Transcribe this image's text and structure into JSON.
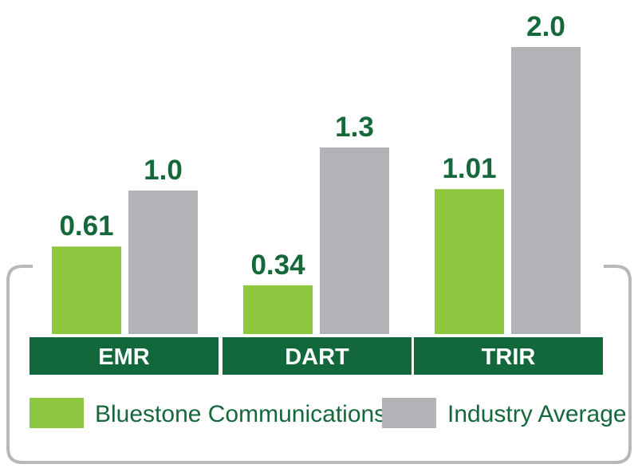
{
  "chart_data": {
    "type": "bar",
    "categories": [
      "EMR",
      "DART",
      "TRIR"
    ],
    "series": [
      {
        "name": "Bluestone Communications",
        "values": [
          0.61,
          0.34,
          1.01
        ],
        "labels": [
          "0.61",
          "0.34",
          "1.01"
        ],
        "color": "#8dc63f"
      },
      {
        "name": "Industry Average",
        "values": [
          1.0,
          1.3,
          2.0
        ],
        "labels": [
          "1.0",
          "1.3",
          "2.0"
        ],
        "color": "#b1b3b6"
      }
    ],
    "ylim": [
      0,
      2.0
    ],
    "legend_position": "bottom",
    "grid": false,
    "colors": {
      "category_band": "#12683a",
      "value_label": "#14683a",
      "frame": "#b8b8b8"
    }
  }
}
